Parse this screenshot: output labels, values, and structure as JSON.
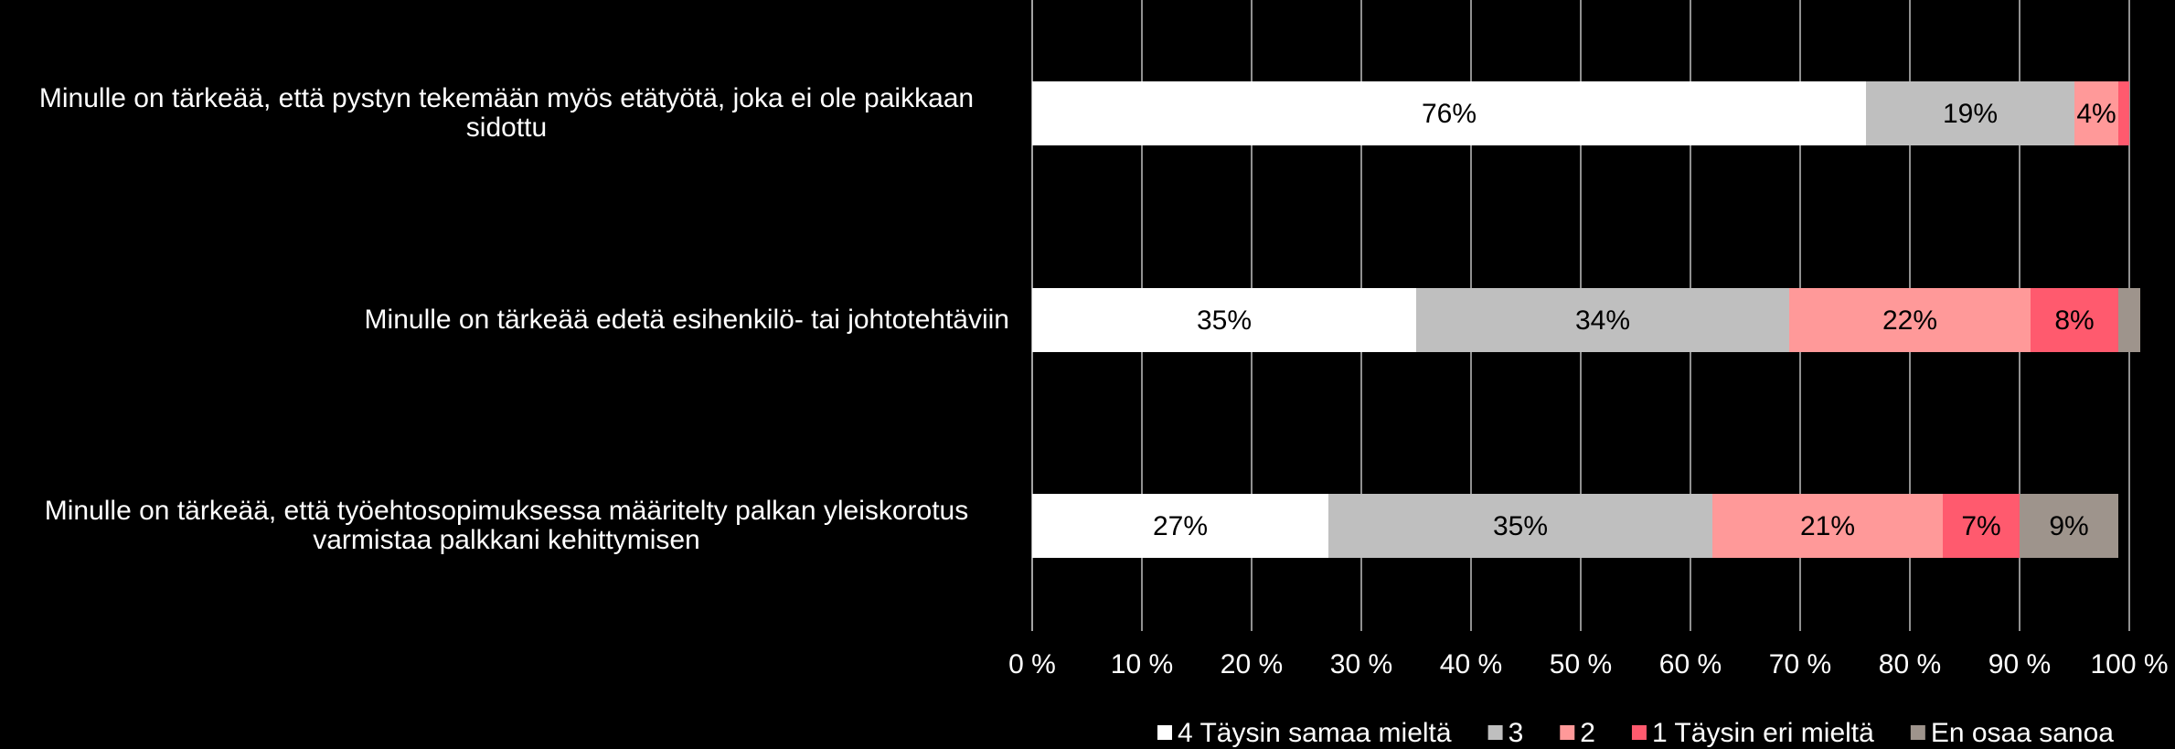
{
  "chart_data": {
    "type": "stacked-bar-horizontal",
    "categories": [
      "Minulle on tärkeää, että pystyn tekemään myös etätyötä, joka ei ole paikkaan sidottu",
      "Minulle on tärkeää edetä esihenkilö- tai johtotehtäviin",
      "Minulle on tärkeää, että työehtosopimuksessa määritelty palkan yleiskorotus varmistaa palkkani kehittymisen"
    ],
    "series": [
      {
        "name": "4 Täysin samaa mieltä",
        "color": "#ffffff",
        "values": [
          76,
          35,
          27
        ],
        "value_labels": [
          "76%",
          "35%",
          "27%"
        ]
      },
      {
        "name": "3",
        "color": "#bfbfbf",
        "values": [
          19,
          34,
          35
        ],
        "value_labels": [
          "19%",
          "34%",
          "35%"
        ]
      },
      {
        "name": "2",
        "color": "#ff9999",
        "values": [
          4,
          22,
          21
        ],
        "value_labels": [
          "4%",
          "22%",
          "21%"
        ]
      },
      {
        "name": "1 Täysin eri mieltä",
        "color": "#ff5a6e",
        "values": [
          1,
          8,
          7
        ],
        "value_labels": [
          null,
          "8%",
          "7%"
        ]
      },
      {
        "name": "En osaa sanoa",
        "color": "#9e948c",
        "values": [
          0,
          2,
          9
        ],
        "value_labels": [
          null,
          null,
          "9%"
        ]
      }
    ],
    "xlim": [
      0,
      100
    ],
    "xticks": [
      {
        "value": 0,
        "label": "0 %"
      },
      {
        "value": 10,
        "label": "10 %"
      },
      {
        "value": 20,
        "label": "20 %"
      },
      {
        "value": 30,
        "label": "30 %"
      },
      {
        "value": 40,
        "label": "40 %"
      },
      {
        "value": 50,
        "label": "50 %"
      },
      {
        "value": 60,
        "label": "60 %"
      },
      {
        "value": 70,
        "label": "70 %"
      },
      {
        "value": 80,
        "label": "80 %"
      },
      {
        "value": 90,
        "label": "90 %"
      },
      {
        "value": 100,
        "label": "100 %"
      }
    ],
    "grid": true,
    "legend": "bottom"
  }
}
